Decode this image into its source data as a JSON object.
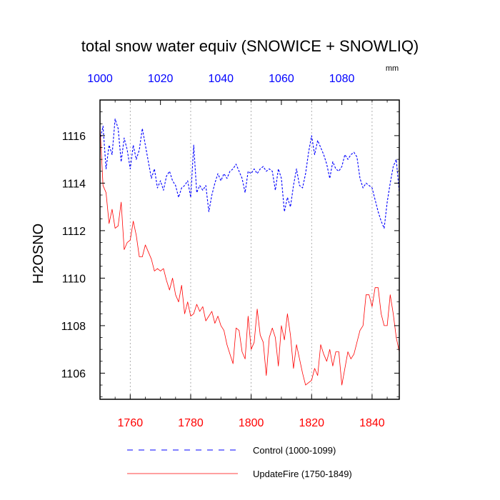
{
  "chart_data": {
    "type": "line",
    "title": "total snow water equiv (SNOWICE + SNOWLIQ)",
    "units": "mm",
    "ylabel": "H2OSNO",
    "ylim": [
      1104.9,
      1117.5
    ],
    "yticks": [
      1106,
      1108,
      1110,
      1112,
      1114,
      1116
    ],
    "ytick_labels": [
      "1106",
      "1108",
      "1110",
      "1112",
      "1114",
      "1116"
    ],
    "x_bottom": {
      "range": [
        1750,
        1849
      ],
      "ticks": [
        1760,
        1780,
        1800,
        1820,
        1840
      ],
      "tick_labels": [
        "1760",
        "1780",
        "1800",
        "1820",
        "1840"
      ],
      "color": "#ff0000"
    },
    "x_top": {
      "range": [
        1000,
        1099
      ],
      "ticks": [
        1000,
        1020,
        1040,
        1060,
        1080
      ],
      "tick_labels": [
        "1000",
        "1020",
        "1040",
        "1060",
        "1080"
      ],
      "color": "#0000ff"
    },
    "grid": "vertical dotted at major bottom ticks",
    "series": [
      {
        "name": "Control (1000-1099)",
        "axis": "top",
        "color": "#0000ff",
        "dash": "dashed",
        "x": [
          1000,
          1001,
          1002,
          1003,
          1004,
          1005,
          1006,
          1007,
          1008,
          1009,
          1010,
          1011,
          1012,
          1013,
          1014,
          1015,
          1016,
          1017,
          1018,
          1019,
          1020,
          1021,
          1022,
          1023,
          1024,
          1025,
          1026,
          1027,
          1028,
          1029,
          1030,
          1031,
          1032,
          1033,
          1034,
          1035,
          1036,
          1037,
          1038,
          1039,
          1040,
          1041,
          1042,
          1043,
          1044,
          1045,
          1046,
          1047,
          1048,
          1049,
          1050,
          1051,
          1052,
          1053,
          1054,
          1055,
          1056,
          1057,
          1058,
          1059,
          1060,
          1061,
          1062,
          1063,
          1064,
          1065,
          1066,
          1067,
          1068,
          1069,
          1070,
          1071,
          1072,
          1073,
          1074,
          1075,
          1076,
          1077,
          1078,
          1079,
          1080,
          1081,
          1082,
          1083,
          1084,
          1085,
          1086,
          1087,
          1088,
          1089,
          1090,
          1091,
          1092,
          1093,
          1094,
          1095,
          1096,
          1097,
          1098,
          1099
        ],
        "values": [
          1115.8,
          1116.4,
          1114.6,
          1115.6,
          1115.2,
          1116.7,
          1116.3,
          1114.9,
          1115.9,
          1115.4,
          1114.6,
          1115.6,
          1115.0,
          1115.4,
          1116.3,
          1115.6,
          1114.9,
          1114.2,
          1114.6,
          1113.8,
          1114.1,
          1113.7,
          1114.3,
          1114.5,
          1114.1,
          1113.9,
          1113.4,
          1113.8,
          1113.9,
          1114.1,
          1113.4,
          1115.6,
          1113.6,
          1113.9,
          1113.7,
          1113.9,
          1112.8,
          1113.5,
          1114.0,
          1114.4,
          1114.1,
          1114.4,
          1114.2,
          1114.5,
          1114.6,
          1114.8,
          1114.5,
          1114.2,
          1113.6,
          1114.5,
          1114.4,
          1114.6,
          1114.4,
          1114.6,
          1114.7,
          1114.5,
          1114.6,
          1114.5,
          1113.7,
          1114.6,
          1114.2,
          1112.8,
          1113.4,
          1113.0,
          1113.9,
          1114.6,
          1113.9,
          1113.8,
          1114.4,
          1115.3,
          1116.0,
          1115.2,
          1115.8,
          1115.5,
          1115.2,
          1114.8,
          1114.2,
          1114.9,
          1114.6,
          1114.5,
          1114.7,
          1115.2,
          1115.0,
          1115.2,
          1115.3,
          1115.1,
          1114.2,
          1113.8,
          1114.0,
          1113.9,
          1113.8,
          1113.3,
          1112.8,
          1112.4,
          1112.1,
          1113.2,
          1114.0,
          1114.7,
          1115.0,
          1113.6
        ]
      },
      {
        "name": "UpdateFire (1750-1849)",
        "axis": "bottom",
        "color": "#ff0000",
        "dash": "solid",
        "x": [
          1750,
          1751,
          1752,
          1753,
          1754,
          1755,
          1756,
          1757,
          1758,
          1759,
          1760,
          1761,
          1762,
          1763,
          1764,
          1765,
          1766,
          1767,
          1768,
          1769,
          1770,
          1771,
          1772,
          1773,
          1774,
          1775,
          1776,
          1777,
          1778,
          1779,
          1780,
          1781,
          1782,
          1783,
          1784,
          1785,
          1786,
          1787,
          1788,
          1789,
          1790,
          1791,
          1792,
          1793,
          1794,
          1795,
          1796,
          1797,
          1798,
          1799,
          1800,
          1801,
          1802,
          1803,
          1804,
          1805,
          1806,
          1807,
          1808,
          1809,
          1810,
          1811,
          1812,
          1813,
          1814,
          1815,
          1816,
          1817,
          1818,
          1819,
          1820,
          1821,
          1822,
          1823,
          1824,
          1825,
          1826,
          1827,
          1828,
          1829,
          1830,
          1831,
          1832,
          1833,
          1834,
          1835,
          1836,
          1837,
          1838,
          1839,
          1840,
          1841,
          1842,
          1843,
          1844,
          1845,
          1846,
          1847,
          1848,
          1849
        ],
        "values": [
          1116.4,
          1113.9,
          1113.6,
          1112.3,
          1112.9,
          1112.1,
          1112.2,
          1113.2,
          1111.2,
          1111.5,
          1111.6,
          1112.4,
          1111.8,
          1110.9,
          1110.9,
          1111.4,
          1111.1,
          1110.8,
          1110.3,
          1110.4,
          1110.3,
          1110.4,
          1109.9,
          1109.5,
          1110.0,
          1109.3,
          1109.0,
          1109.7,
          1108.5,
          1109.0,
          1108.4,
          1108.5,
          1108.9,
          1108.6,
          1108.8,
          1108.2,
          1108.4,
          1108.6,
          1108.1,
          1108.4,
          1108.0,
          1107.8,
          1107.2,
          1106.8,
          1106.4,
          1107.9,
          1107.8,
          1106.9,
          1106.6,
          1108.4,
          1107.0,
          1107.3,
          1108.7,
          1107.6,
          1107.3,
          1105.9,
          1107.5,
          1107.9,
          1107.5,
          1106.3,
          1108.0,
          1107.4,
          1108.5,
          1107.6,
          1106.2,
          1107.2,
          1106.6,
          1106.0,
          1105.5,
          1105.6,
          1105.7,
          1106.2,
          1105.9,
          1107.2,
          1106.8,
          1106.5,
          1107.0,
          1106.3,
          1106.9,
          1106.9,
          1105.5,
          1106.2,
          1106.9,
          1106.6,
          1106.8,
          1107.3,
          1107.8,
          1108.0,
          1109.3,
          1109.3,
          1108.8,
          1109.6,
          1109.6,
          1108.5,
          1108.0,
          1108.0,
          1109.3,
          1108.5,
          1107.5,
          1106.9
        ]
      }
    ],
    "legend": {
      "placement": "bottom",
      "entries": [
        {
          "label": "Control (1000-1099)",
          "color": "#0000ff",
          "dash": "dashed"
        },
        {
          "label": "UpdateFire (1750-1849)",
          "color": "#ff0000",
          "dash": "solid"
        }
      ]
    }
  }
}
